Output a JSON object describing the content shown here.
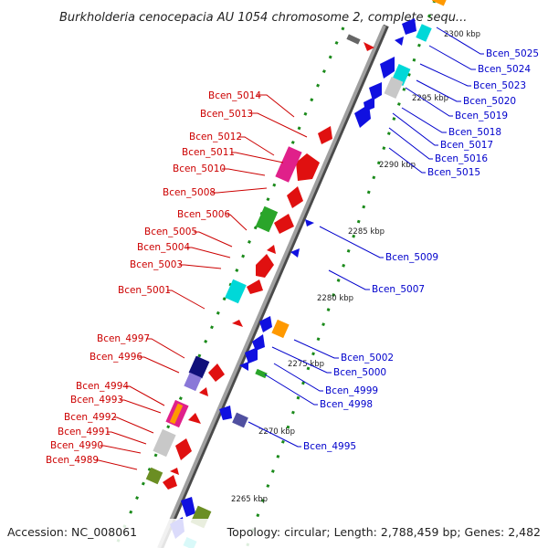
{
  "title": "Burkholderia cenocepacia AU 1054 chromosome 2, complete sequ...",
  "footer": {
    "accession": "Accession: NC_008061",
    "summary": "Topology: circular; Length: 2,788,459 bp; Genes: 2,482"
  },
  "colors": {
    "left_label": "#cc0000",
    "right_label": "#0000cc",
    "axis": "#808080",
    "axis_shadow": "#4a4a4a",
    "tick_dots": "#1a8a1a"
  },
  "ticks": [
    "2300 kbp",
    "2295 kbp",
    "2290 kbp",
    "2285 kbp",
    "2280 kbp",
    "2275 kbp",
    "2270 kbp",
    "2265 kbp"
  ],
  "left_labels": [
    "Bcen_5014",
    "Bcen_5013",
    "Bcen_5012",
    "Bcen_5011",
    "Bcen_5010",
    "Bcen_5008",
    "Bcen_5006",
    "Bcen_5005",
    "Bcen_5004",
    "Bcen_5003",
    "Bcen_5001",
    "Bcen_4997",
    "Bcen_4996",
    "Bcen_4994",
    "Bcen_4993",
    "Bcen_4992",
    "Bcen_4991",
    "Bcen_4990",
    "Bcen_4989"
  ],
  "right_labels": [
    "Bcen_5025",
    "Bcen_5024",
    "Bcen_5023",
    "Bcen_5020",
    "Bcen_5019",
    "Bcen_5018",
    "Bcen_5017",
    "Bcen_5016",
    "Bcen_5015",
    "Bcen_5009",
    "Bcen_5007",
    "Bcen_5002",
    "Bcen_5000",
    "Bcen_4999",
    "Bcen_4998",
    "Bcen_4995"
  ]
}
